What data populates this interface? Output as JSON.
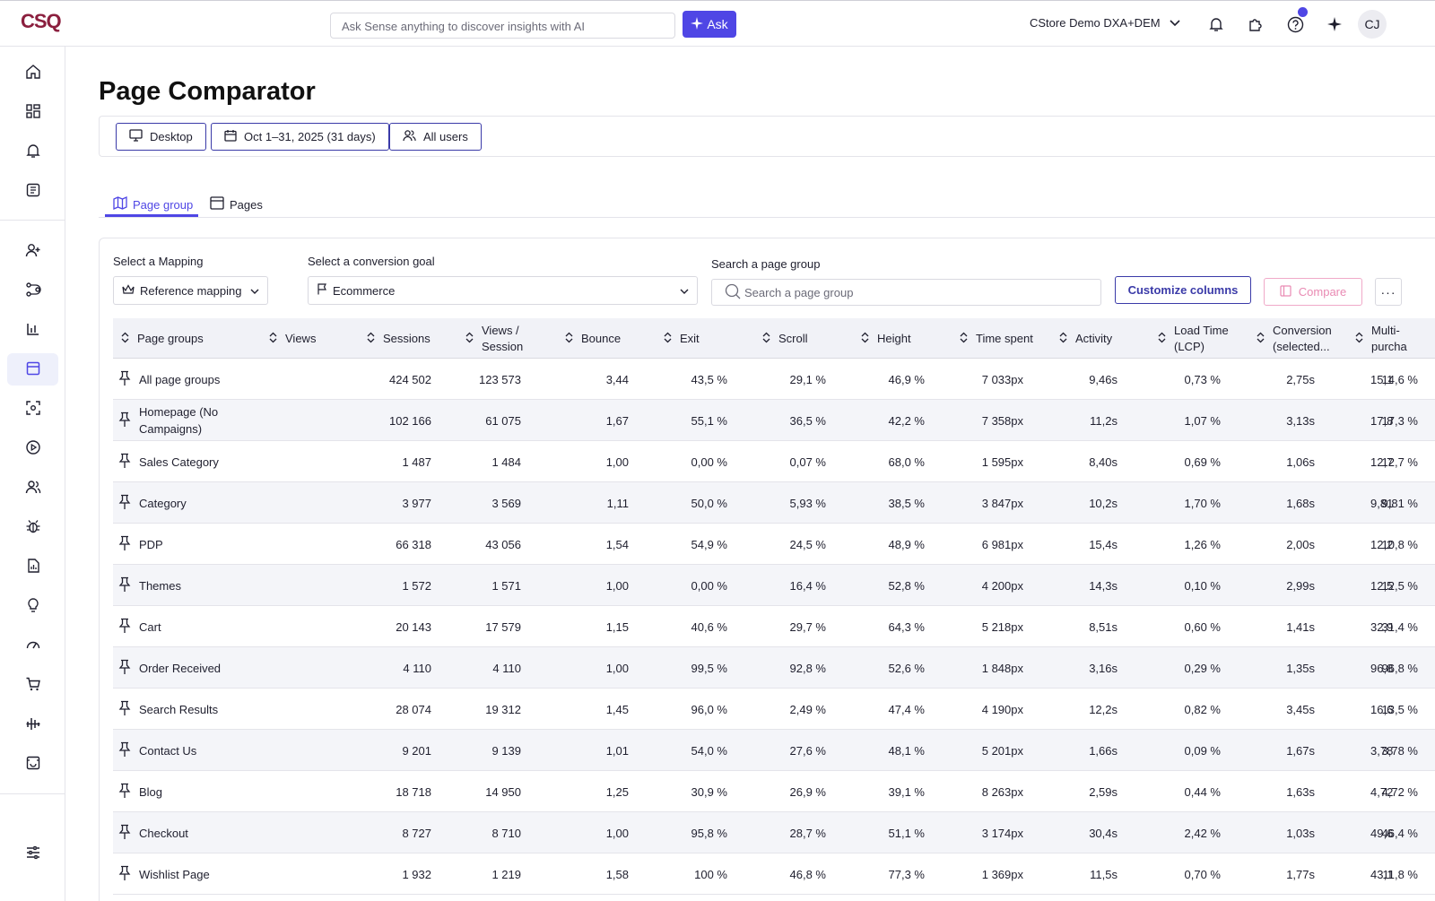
{
  "topbar": {
    "logo": "CSQ",
    "ask_placeholder": "Ask Sense anything to discover insights with AI",
    "ask_label": "Ask",
    "workspace": "CStore Demo DXA+DEM",
    "avatar_initials": "CJ"
  },
  "page": {
    "title": "Page Comparator",
    "filters": {
      "device": "Desktop",
      "date_range": "Oct 1–31, 2025 (31 days)",
      "segment": "All users"
    },
    "tabs": [
      {
        "label": "Page group",
        "active": true
      },
      {
        "label": "Pages",
        "active": false
      }
    ]
  },
  "controls": {
    "mapping_label": "Select a Mapping",
    "mapping_value": "Reference mapping",
    "goal_label": "Select a conversion goal",
    "goal_value": "Ecommerce",
    "search_label": "Search a page group",
    "search_placeholder": "Search a page group",
    "customize_label": "Customize columns",
    "compare_label": "Compare",
    "more_label": "···"
  },
  "table": {
    "columns": [
      "Page groups",
      "Views",
      "Sessions",
      "Views / Session",
      "Bounce",
      "Exit",
      "Scroll",
      "Height",
      "Time spent",
      "Activity",
      "Load Time (LCP)",
      "Conversion (selected...",
      "Multi-purcha"
    ],
    "rows": [
      [
        "All page groups",
        "424 502",
        "123 573",
        "3,44",
        "43,5 %",
        "29,1 %",
        "46,9 %",
        "7 033px",
        "9,46s",
        "0,73 %",
        "2,75s",
        "14,6 %",
        "15,1"
      ],
      [
        "Homepage (No Campaigns)",
        "102 166",
        "61 075",
        "1,67",
        "55,1 %",
        "36,5 %",
        "42,2 %",
        "7 358px",
        "11,2s",
        "1,07 %",
        "3,13s",
        "17,3 %",
        "17,8"
      ],
      [
        "Sales Category",
        "1 487",
        "1 484",
        "1,00",
        "0,00 %",
        "0,07 %",
        "68,0 %",
        "1 595px",
        "8,40s",
        "0,69 %",
        "1,06s",
        "12,7 %",
        "12,7"
      ],
      [
        "Category",
        "3 977",
        "3 569",
        "1,11",
        "50,0 %",
        "5,93 %",
        "38,5 %",
        "3 847px",
        "10,2s",
        "1,70 %",
        "1,68s",
        "9,81 %",
        "9,81"
      ],
      [
        "PDP",
        "66 318",
        "43 056",
        "1,54",
        "54,9 %",
        "24,5 %",
        "48,9 %",
        "6 981px",
        "15,4s",
        "1,26 %",
        "2,00s",
        "10,8 %",
        "12,2"
      ],
      [
        "Themes",
        "1 572",
        "1 571",
        "1,00",
        "0,00 %",
        "16,4 %",
        "52,8 %",
        "4 200px",
        "14,3s",
        "0,10 %",
        "2,99s",
        "12,5 %",
        "12,5"
      ],
      [
        "Cart",
        "20 143",
        "17 579",
        "1,15",
        "40,6 %",
        "29,7 %",
        "64,3 %",
        "5 218px",
        "8,51s",
        "0,60 %",
        "1,41s",
        "31,4 %",
        "32,9"
      ],
      [
        "Order Received",
        "4 110",
        "4 110",
        "1,00",
        "99,5 %",
        "92,8 %",
        "52,6 %",
        "1 848px",
        "3,16s",
        "0,29 %",
        "1,35s",
        "96,8 %",
        "96,8"
      ],
      [
        "Search Results",
        "28 074",
        "19 312",
        "1,45",
        "96,0 %",
        "2,49 %",
        "47,4 %",
        "4 190px",
        "12,2s",
        "0,82 %",
        "3,45s",
        "13,5 %",
        "16,6"
      ],
      [
        "Contact Us",
        "9 201",
        "9 139",
        "1,01",
        "54,0 %",
        "27,6 %",
        "48,1 %",
        "5 201px",
        "1,66s",
        "0,09 %",
        "1,67s",
        "3,78 %",
        "3,78"
      ],
      [
        "Blog",
        "18 718",
        "14 950",
        "1,25",
        "30,9 %",
        "26,9 %",
        "39,1 %",
        "8 263px",
        "2,59s",
        "0,44 %",
        "1,63s",
        "4,72 %",
        "4,72"
      ],
      [
        "Checkout",
        "8 727",
        "8 710",
        "1,00",
        "95,8 %",
        "28,7 %",
        "51,1 %",
        "3 174px",
        "30,4s",
        "2,42 %",
        "1,03s",
        "46,4 %",
        "49,6"
      ],
      [
        "Wishlist Page",
        "1 932",
        "1 219",
        "1,58",
        "100 %",
        "46,8 %",
        "77,3 %",
        "1 369px",
        "11,5s",
        "0,70 %",
        "1,77s",
        "11,8 %",
        "43,1"
      ]
    ]
  },
  "colors": {
    "accent": "#4f46e5",
    "brand": "#8b1f3e",
    "compare": "#e98ab3",
    "row_alt": "#f4f5f9"
  },
  "sidebar_icons": [
    "home-icon",
    "dashboards-icon",
    "alerts-icon",
    "analyses-icon",
    "user-plus-icon",
    "journeys-icon",
    "bar-chart-icon",
    "page-comparator-icon",
    "zoning-icon",
    "session-replay-icon",
    "segments-icon",
    "bug-icon",
    "reports-icon",
    "insights-icon",
    "speed-icon",
    "cart-icon",
    "impact-icon",
    "voc-icon",
    "settings-sliders-icon"
  ]
}
